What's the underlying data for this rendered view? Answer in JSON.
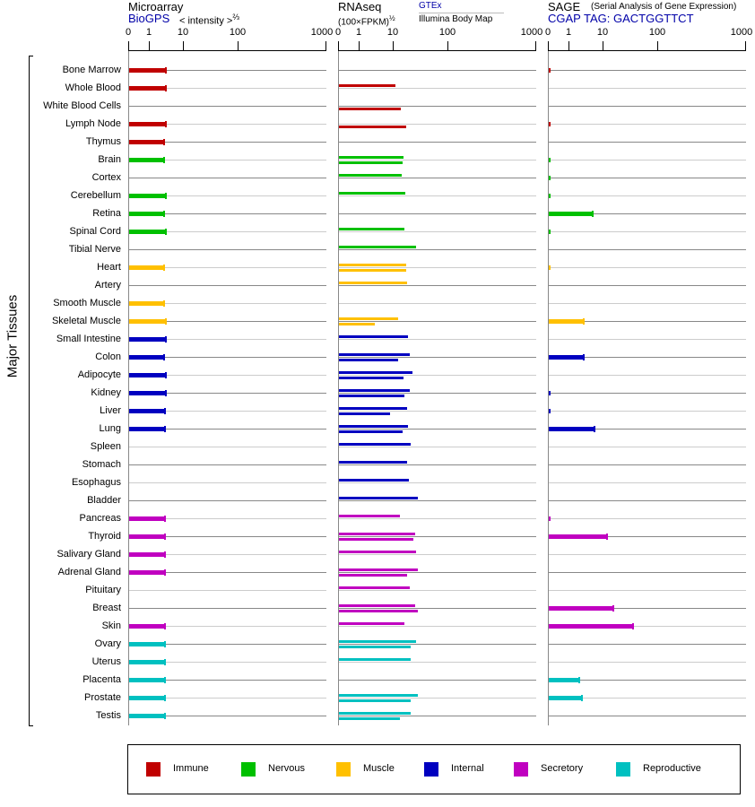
{
  "header": {
    "microarray": {
      "title": "Microarray",
      "source": "BioGPS",
      "scale_label": "< intensity >",
      "scale_exp": "⅔"
    },
    "rnaseq": {
      "title": "RNAseq",
      "scale_label": "(100×FPKM)",
      "scale_exp": "½",
      "source1": "GTEx",
      "source2": "Illumina Body Map"
    },
    "sage": {
      "title": "SAGE",
      "subtitle": "(Serial Analysis of Gene Expression)",
      "tag": "CGAP TAG: GACTGGTTCT"
    }
  },
  "y_axis_label": "Major Tissues",
  "chart_data": {
    "type": "bar",
    "orientation": "horizontal",
    "axis_ticks": [
      0,
      1,
      10,
      100,
      1000
    ],
    "tick_labels": [
      "0",
      "1",
      "10",
      "100",
      "1000"
    ],
    "categories": [
      "Bone Marrow",
      "Whole Blood",
      "White Blood Cells",
      "Lymph Node",
      "Thymus",
      "Brain",
      "Cortex",
      "Cerebellum",
      "Retina",
      "Spinal Cord",
      "Tibial Nerve",
      "Heart",
      "Artery",
      "Smooth Muscle",
      "Skeletal Muscle",
      "Small Intestine",
      "Colon",
      "Adipocyte",
      "Kidney",
      "Liver",
      "Lung",
      "Spleen",
      "Stomach",
      "Esophagus",
      "Bladder",
      "Pancreas",
      "Thyroid",
      "Salivary Gland",
      "Adrenal Gland",
      "Pituitary",
      "Breast",
      "Skin",
      "Ovary",
      "Uterus",
      "Placenta",
      "Prostate",
      "Testis"
    ],
    "groups": [
      "Immune",
      "Immune",
      "Immune",
      "Immune",
      "Immune",
      "Nervous",
      "Nervous",
      "Nervous",
      "Nervous",
      "Nervous",
      "Nervous",
      "Muscle",
      "Muscle",
      "Muscle",
      "Muscle",
      "Internal",
      "Internal",
      "Internal",
      "Internal",
      "Internal",
      "Internal",
      "Internal",
      "Internal",
      "Internal",
      "Internal",
      "Secretory",
      "Secretory",
      "Secretory",
      "Secretory",
      "Secretory",
      "Secretory",
      "Secretory",
      "Reproductive",
      "Reproductive",
      "Reproductive",
      "Reproductive",
      "Reproductive"
    ],
    "series": [
      {
        "name": "Microarray",
        "values": [
          2.9,
          2.9,
          null,
          2.9,
          2.7,
          2.7,
          null,
          2.9,
          2.7,
          2.9,
          null,
          2.7,
          null,
          2.7,
          2.9,
          2.9,
          2.7,
          2.9,
          2.9,
          2.8,
          2.8,
          null,
          null,
          null,
          null,
          2.8,
          2.8,
          2.8,
          2.8,
          null,
          null,
          2.8,
          2.8,
          2.8,
          2.8,
          2.8,
          2.8
        ]
      },
      {
        "name": "RNAseq GTEx",
        "values": [
          null,
          10.8,
          null,
          null,
          null,
          15.1,
          14.0,
          16.3,
          null,
          15.7,
          25.7,
          17.0,
          17.6,
          null,
          12.1,
          18.3,
          19.8,
          22.1,
          19.8,
          17.6,
          18.3,
          20.5,
          17.6,
          19.0,
          27.7,
          13.0,
          24.7,
          25.7,
          27.7,
          19.8,
          24.7,
          15.7,
          25.7,
          20.5,
          null,
          27.7,
          20.5
        ]
      },
      {
        "name": "RNAseq Illumina Body Map",
        "values": [
          null,
          null,
          13.5,
          17.0,
          null,
          14.6,
          null,
          null,
          null,
          null,
          null,
          17.0,
          null,
          null,
          2.8,
          null,
          12.1,
          15.1,
          15.7,
          7.8,
          14.6,
          null,
          null,
          null,
          null,
          null,
          22.9,
          null,
          17.6,
          null,
          27.7,
          null,
          20.5,
          null,
          null,
          20.5,
          13.0
        ]
      },
      {
        "name": "SAGE",
        "values": [
          0.1,
          null,
          null,
          0.1,
          null,
          0.1,
          0.1,
          0.1,
          4.8,
          0.1,
          null,
          0.1,
          null,
          null,
          2.6,
          null,
          2.7,
          null,
          0.1,
          0.1,
          5.4,
          null,
          null,
          null,
          null,
          0.1,
          11.5,
          null,
          null,
          null,
          14.9,
          34.4,
          null,
          null,
          2.0,
          2.4,
          null
        ]
      }
    ],
    "legend": [
      {
        "label": "Immune",
        "color": "#c00000"
      },
      {
        "label": "Nervous",
        "color": "#00c000"
      },
      {
        "label": "Muscle",
        "color": "#ffc000"
      },
      {
        "label": "Internal",
        "color": "#0000c0"
      },
      {
        "label": "Secretory",
        "color": "#c000c0"
      },
      {
        "label": "Reproductive",
        "color": "#00c0c0"
      }
    ],
    "legend_position": "bottom",
    "grid": true
  }
}
